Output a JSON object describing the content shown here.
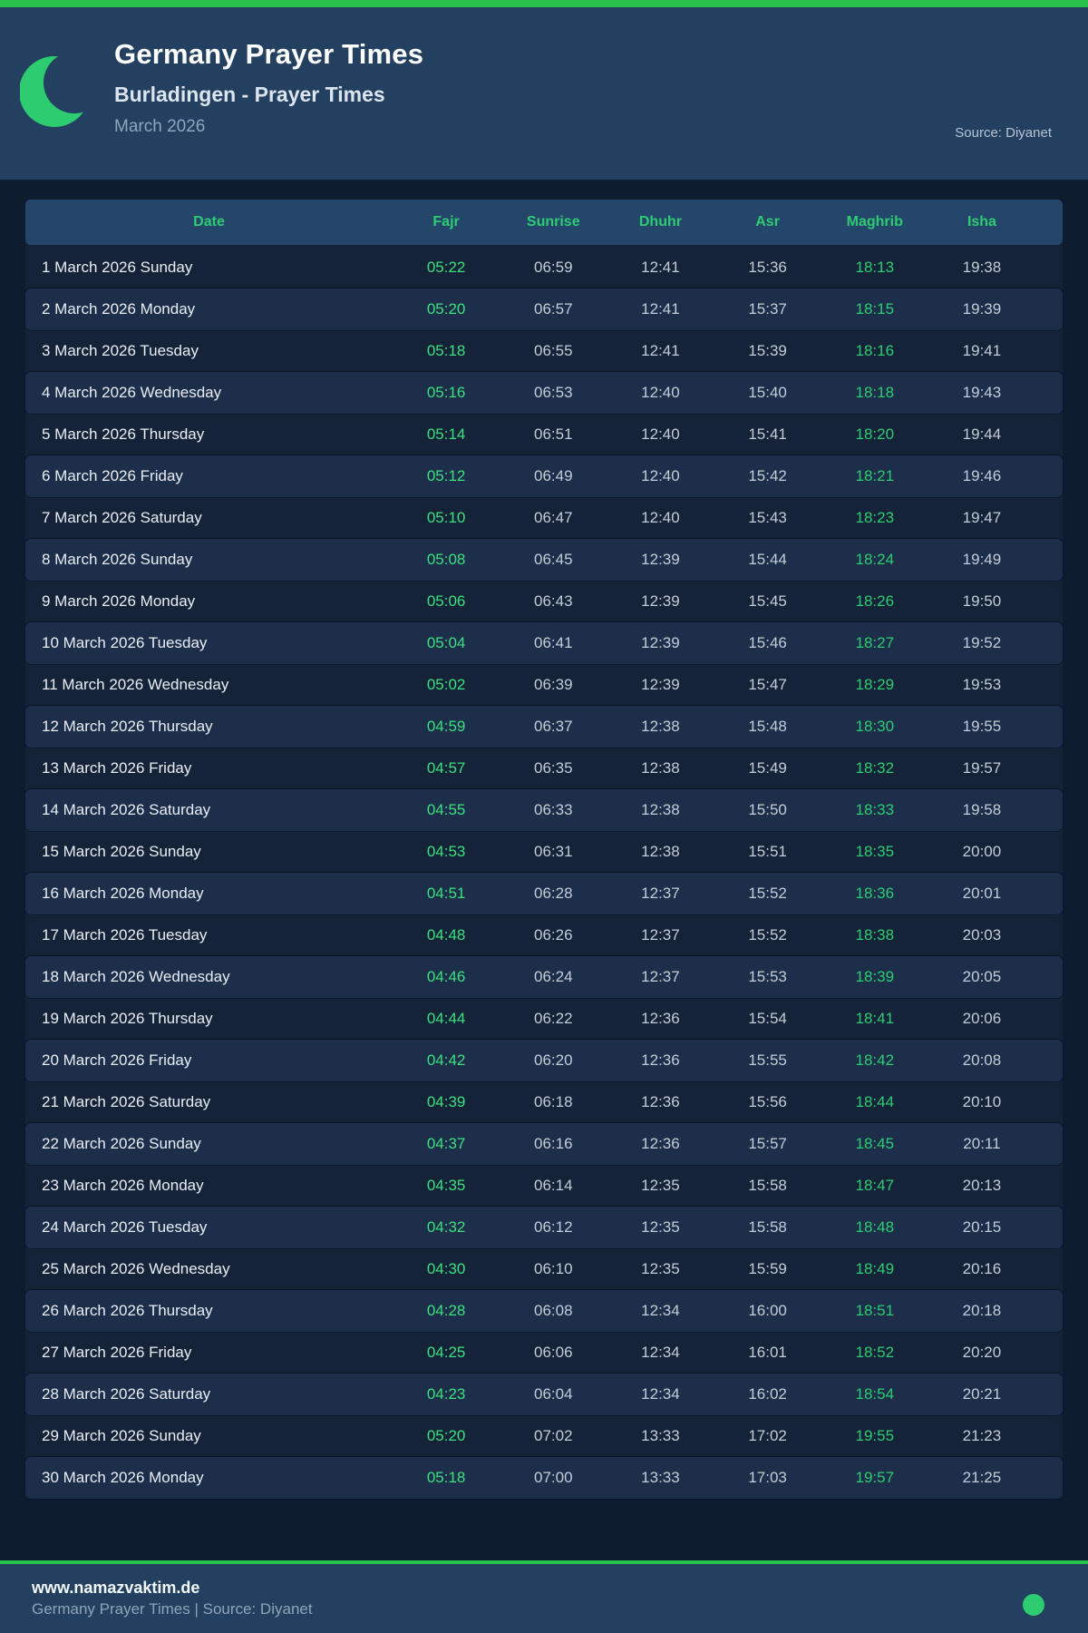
{
  "header": {
    "title": "Germany Prayer Times",
    "subtitle": "Burladingen - Prayer Times",
    "month": "March 2026",
    "source": "Source: Diyanet"
  },
  "table": {
    "columns": [
      "Date",
      "Fajr",
      "Sunrise",
      "Dhuhr",
      "Asr",
      "Maghrib",
      "Isha"
    ],
    "rows": [
      [
        "1 March 2026 Sunday",
        "05:22",
        "06:59",
        "12:41",
        "15:36",
        "18:13",
        "19:38"
      ],
      [
        "2 March 2026 Monday",
        "05:20",
        "06:57",
        "12:41",
        "15:37",
        "18:15",
        "19:39"
      ],
      [
        "3 March 2026 Tuesday",
        "05:18",
        "06:55",
        "12:41",
        "15:39",
        "18:16",
        "19:41"
      ],
      [
        "4 March 2026 Wednesday",
        "05:16",
        "06:53",
        "12:40",
        "15:40",
        "18:18",
        "19:43"
      ],
      [
        "5 March 2026 Thursday",
        "05:14",
        "06:51",
        "12:40",
        "15:41",
        "18:20",
        "19:44"
      ],
      [
        "6 March 2026 Friday",
        "05:12",
        "06:49",
        "12:40",
        "15:42",
        "18:21",
        "19:46"
      ],
      [
        "7 March 2026 Saturday",
        "05:10",
        "06:47",
        "12:40",
        "15:43",
        "18:23",
        "19:47"
      ],
      [
        "8 March 2026 Sunday",
        "05:08",
        "06:45",
        "12:39",
        "15:44",
        "18:24",
        "19:49"
      ],
      [
        "9 March 2026 Monday",
        "05:06",
        "06:43",
        "12:39",
        "15:45",
        "18:26",
        "19:50"
      ],
      [
        "10 March 2026 Tuesday",
        "05:04",
        "06:41",
        "12:39",
        "15:46",
        "18:27",
        "19:52"
      ],
      [
        "11 March 2026 Wednesday",
        "05:02",
        "06:39",
        "12:39",
        "15:47",
        "18:29",
        "19:53"
      ],
      [
        "12 March 2026 Thursday",
        "04:59",
        "06:37",
        "12:38",
        "15:48",
        "18:30",
        "19:55"
      ],
      [
        "13 March 2026 Friday",
        "04:57",
        "06:35",
        "12:38",
        "15:49",
        "18:32",
        "19:57"
      ],
      [
        "14 March 2026 Saturday",
        "04:55",
        "06:33",
        "12:38",
        "15:50",
        "18:33",
        "19:58"
      ],
      [
        "15 March 2026 Sunday",
        "04:53",
        "06:31",
        "12:38",
        "15:51",
        "18:35",
        "20:00"
      ],
      [
        "16 March 2026 Monday",
        "04:51",
        "06:28",
        "12:37",
        "15:52",
        "18:36",
        "20:01"
      ],
      [
        "17 March 2026 Tuesday",
        "04:48",
        "06:26",
        "12:37",
        "15:52",
        "18:38",
        "20:03"
      ],
      [
        "18 March 2026 Wednesday",
        "04:46",
        "06:24",
        "12:37",
        "15:53",
        "18:39",
        "20:05"
      ],
      [
        "19 March 2026 Thursday",
        "04:44",
        "06:22",
        "12:36",
        "15:54",
        "18:41",
        "20:06"
      ],
      [
        "20 March 2026 Friday",
        "04:42",
        "06:20",
        "12:36",
        "15:55",
        "18:42",
        "20:08"
      ],
      [
        "21 March 2026 Saturday",
        "04:39",
        "06:18",
        "12:36",
        "15:56",
        "18:44",
        "20:10"
      ],
      [
        "22 March 2026 Sunday",
        "04:37",
        "06:16",
        "12:36",
        "15:57",
        "18:45",
        "20:11"
      ],
      [
        "23 March 2026 Monday",
        "04:35",
        "06:14",
        "12:35",
        "15:58",
        "18:47",
        "20:13"
      ],
      [
        "24 March 2026 Tuesday",
        "04:32",
        "06:12",
        "12:35",
        "15:58",
        "18:48",
        "20:15"
      ],
      [
        "25 March 2026 Wednesday",
        "04:30",
        "06:10",
        "12:35",
        "15:59",
        "18:49",
        "20:16"
      ],
      [
        "26 March 2026 Thursday",
        "04:28",
        "06:08",
        "12:34",
        "16:00",
        "18:51",
        "20:18"
      ],
      [
        "27 March 2026 Friday",
        "04:25",
        "06:06",
        "12:34",
        "16:01",
        "18:52",
        "20:20"
      ],
      [
        "28 March 2026 Saturday",
        "04:23",
        "06:04",
        "12:34",
        "16:02",
        "18:54",
        "20:21"
      ],
      [
        "29 March 2026 Sunday",
        "05:20",
        "07:02",
        "13:33",
        "17:02",
        "19:55",
        "21:23"
      ],
      [
        "30 March 2026 Monday",
        "05:18",
        "07:00",
        "13:33",
        "17:03",
        "19:57",
        "21:25"
      ]
    ]
  },
  "footer": {
    "url": "www.namazvaktim.de",
    "tagline": "Germany Prayer Times | Source: Diyanet"
  },
  "colors": {
    "topbar_green": "#29c04b",
    "accent_green": "#2ecc71",
    "fajr_green": "#3ce07d",
    "header_navy": "#234060",
    "page_bg": "#0e1c30",
    "row_alt_bg": "#1d2e4a",
    "thead_bg": "#25466b"
  }
}
